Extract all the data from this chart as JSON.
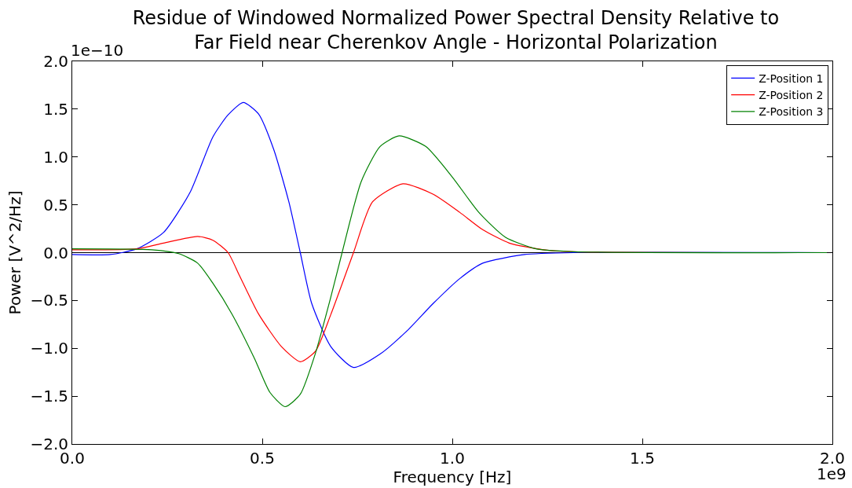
{
  "chart_data": {
    "type": "line",
    "title": "Residue of Windowed Normalized Power Spectral Density Relative to\nFar Field near Cherenkov Angle - Horizontal Polarization",
    "xlabel": "Frequency [Hz]",
    "ylabel": "Power [V^2/Hz]",
    "xlim": [
      0,
      2
    ],
    "xticks": [
      {
        "value": 0,
        "label": "0.0"
      },
      0.5,
      {
        "value": 1,
        "label": "1.0"
      },
      1.5,
      {
        "value": 2,
        "label": "2.0"
      }
    ],
    "ylim": [
      -2,
      2
    ],
    "yticks": [
      {
        "value": -2,
        "label": "−2.0"
      },
      {
        "value": -1.5,
        "label": "−1.5"
      },
      {
        "value": -1,
        "label": "−1.0"
      },
      {
        "value": -0.5,
        "label": "−0.5"
      },
      {
        "value": 0,
        "label": "0.0"
      },
      0.5,
      {
        "value": 1,
        "label": "1.0"
      },
      1.5,
      {
        "value": 2,
        "label": "2.0"
      }
    ],
    "annotations": [
      "1e−10",
      "1e9"
    ],
    "ref_lines": [
      {
        "axis": "y",
        "value": 0,
        "color": "#000000"
      }
    ],
    "grid": false,
    "legend": "top right",
    "line_style": "solid",
    "marker": "none",
    "series": [
      {
        "name": "Z-Position 1",
        "color": "#0000ff",
        "x": [
          0,
          0.1,
          0.17,
          0.24,
          0.31,
          0.37,
          0.41,
          0.45,
          0.49,
          0.53,
          0.57,
          0.6,
          0.63,
          0.68,
          0.74,
          0.81,
          0.88,
          0.95,
          1.02,
          1.08,
          1.19,
          1.32,
          2
        ],
        "values": [
          -0.02,
          -0.02,
          0.04,
          0.21,
          0.63,
          1.21,
          1.44,
          1.57,
          1.45,
          1.08,
          0.53,
          0,
          -0.53,
          -0.98,
          -1.2,
          -1.06,
          -0.82,
          -0.53,
          -0.27,
          -0.11,
          -0.02,
          0,
          0
        ]
      },
      {
        "name": "Z-Position 2",
        "color": "#ff0000",
        "x": [
          0,
          0.17,
          0.24,
          0.33,
          0.37,
          0.41,
          0.44,
          0.49,
          0.55,
          0.6,
          0.64,
          0.68,
          0.74,
          0.79,
          0.87,
          0.95,
          1.02,
          1.08,
          1.15,
          1.24,
          1.32,
          2
        ],
        "values": [
          0.03,
          0.04,
          0.1,
          0.17,
          0.13,
          0,
          -0.24,
          -0.64,
          -0.98,
          -1.14,
          -1.03,
          -0.65,
          0,
          0.53,
          0.72,
          0.61,
          0.42,
          0.24,
          0.1,
          0.03,
          0.01,
          0
        ]
      },
      {
        "name": "Z-Position 3",
        "color": "#008000",
        "x": [
          0,
          0.21,
          0.28,
          0.33,
          0.37,
          0.42,
          0.48,
          0.52,
          0.56,
          0.6,
          0.64,
          0.68,
          0.71,
          0.76,
          0.81,
          0.86,
          0.93,
          1,
          1.07,
          1.14,
          1.22,
          1.32,
          2
        ],
        "values": [
          0.04,
          0.03,
          -0.01,
          -0.11,
          -0.32,
          -0.64,
          -1.11,
          -1.46,
          -1.61,
          -1.48,
          -1.05,
          -0.47,
          0,
          0.74,
          1.11,
          1.22,
          1.11,
          0.79,
          0.42,
          0.16,
          0.04,
          0.01,
          0
        ]
      }
    ]
  }
}
